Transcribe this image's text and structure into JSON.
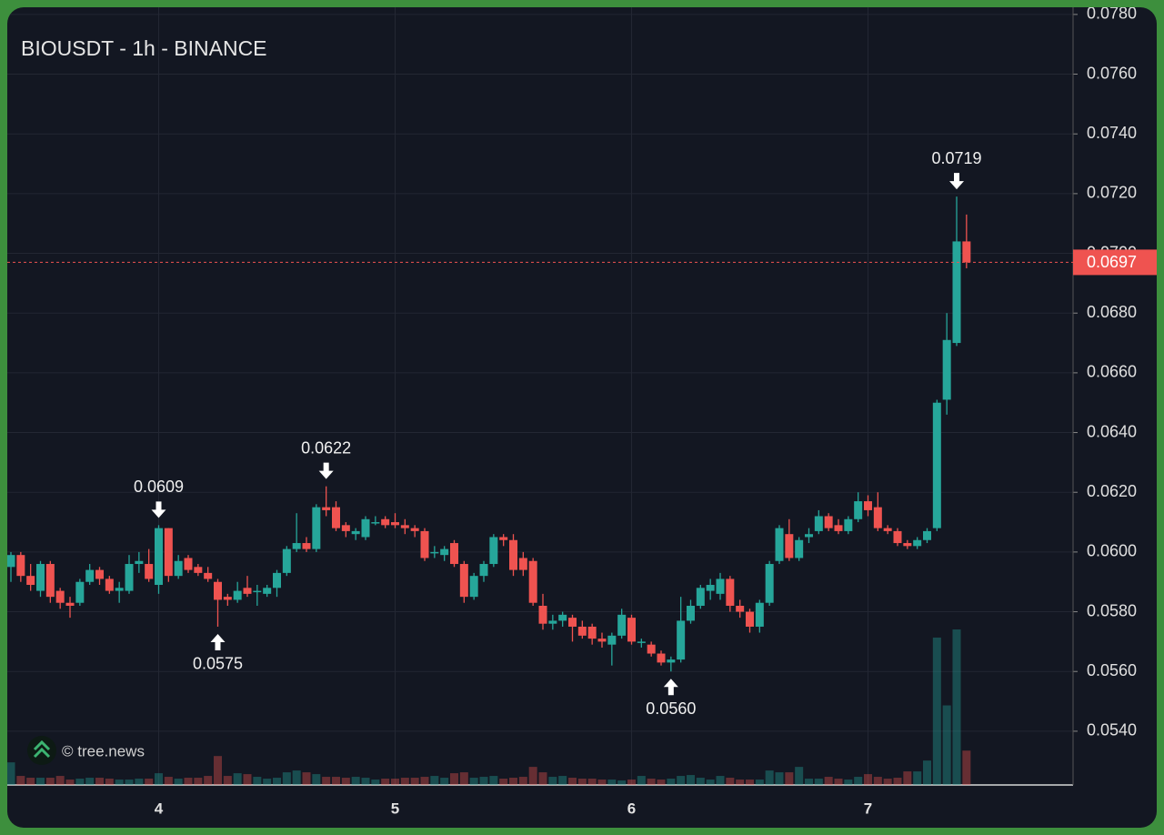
{
  "chart_data": {
    "type": "candlestick",
    "title": "BIOUSDT - 1h - BINANCE",
    "watermark": "© tree.news",
    "categories": [
      null,
      null,
      null,
      null,
      null,
      null,
      null,
      null,
      null,
      null,
      null,
      null,
      null,
      null,
      null,
      "4",
      null,
      null,
      null,
      null,
      null,
      null,
      null,
      null,
      null,
      null,
      null,
      null,
      null,
      null,
      null,
      null,
      null,
      null,
      null,
      null,
      null,
      null,
      null,
      "5",
      null,
      null,
      null,
      null,
      null,
      null,
      null,
      null,
      null,
      null,
      null,
      null,
      null,
      null,
      null,
      null,
      null,
      null,
      null,
      null,
      null,
      null,
      null,
      "6",
      null,
      null,
      null,
      null,
      null,
      null,
      null,
      null,
      null,
      null,
      null,
      null,
      null,
      null,
      null,
      null,
      null,
      null,
      null,
      null,
      null,
      null,
      null,
      "7",
      null,
      null,
      null,
      null,
      null,
      null,
      null,
      null,
      null,
      null
    ],
    "candles": [
      [
        0.0595,
        0.06,
        0.059,
        0.0599
      ],
      [
        0.0599,
        0.06,
        0.059,
        0.0592
      ],
      [
        0.0592,
        0.0596,
        0.0587,
        0.0589
      ],
      [
        0.0587,
        0.0597,
        0.0585,
        0.0596
      ],
      [
        0.0596,
        0.0597,
        0.0583,
        0.0585
      ],
      [
        0.0587,
        0.0588,
        0.0581,
        0.0583
      ],
      [
        0.0583,
        0.0585,
        0.0578,
        0.0582
      ],
      [
        0.0583,
        0.0591,
        0.0582,
        0.059
      ],
      [
        0.059,
        0.0596,
        0.0589,
        0.0594
      ],
      [
        0.0594,
        0.0595,
        0.0589,
        0.0591
      ],
      [
        0.0591,
        0.0592,
        0.0586,
        0.0587
      ],
      [
        0.0587,
        0.059,
        0.0583,
        0.0588
      ],
      [
        0.0587,
        0.0599,
        0.0586,
        0.0596
      ],
      [
        0.0596,
        0.06,
        0.0593,
        0.0597
      ],
      [
        0.0596,
        0.0601,
        0.059,
        0.0591
      ],
      [
        0.0589,
        0.0609,
        0.0586,
        0.0608
      ],
      [
        0.0608,
        0.0608,
        0.059,
        0.0592
      ],
      [
        0.0592,
        0.0599,
        0.0591,
        0.0597
      ],
      [
        0.0598,
        0.0599,
        0.0593,
        0.0594
      ],
      [
        0.0595,
        0.0596,
        0.0592,
        0.0593
      ],
      [
        0.0593,
        0.0595,
        0.059,
        0.0591
      ],
      [
        0.059,
        0.0591,
        0.0575,
        0.0584
      ],
      [
        0.0585,
        0.0586,
        0.0582,
        0.0584
      ],
      [
        0.0584,
        0.059,
        0.0583,
        0.0587
      ],
      [
        0.0588,
        0.0592,
        0.0585,
        0.0586
      ],
      [
        0.0587,
        0.0589,
        0.0582,
        0.0587
      ],
      [
        0.0586,
        0.0589,
        0.0585,
        0.0588
      ],
      [
        0.0588,
        0.0594,
        0.0585,
        0.0593
      ],
      [
        0.0593,
        0.0602,
        0.0592,
        0.0601
      ],
      [
        0.0601,
        0.0613,
        0.06,
        0.0603
      ],
      [
        0.0603,
        0.0605,
        0.06,
        0.0601
      ],
      [
        0.0601,
        0.0616,
        0.06,
        0.0615
      ],
      [
        0.0615,
        0.0622,
        0.0612,
        0.0614
      ],
      [
        0.0615,
        0.0617,
        0.0607,
        0.0608
      ],
      [
        0.0609,
        0.061,
        0.0605,
        0.0607
      ],
      [
        0.0606,
        0.0608,
        0.0604,
        0.0607
      ],
      [
        0.0605,
        0.0612,
        0.0604,
        0.0611
      ],
      [
        0.061,
        0.0612,
        0.0609,
        0.061
      ],
      [
        0.0611,
        0.0612,
        0.0608,
        0.0609
      ],
      [
        0.061,
        0.0613,
        0.0608,
        0.0609
      ],
      [
        0.0609,
        0.0611,
        0.0606,
        0.0608
      ],
      [
        0.0608,
        0.0609,
        0.0605,
        0.0607
      ],
      [
        0.0607,
        0.0608,
        0.0597,
        0.0598
      ],
      [
        0.06,
        0.0602,
        0.0598,
        0.06
      ],
      [
        0.0599,
        0.0602,
        0.0597,
        0.0601
      ],
      [
        0.0603,
        0.0604,
        0.0595,
        0.0596
      ],
      [
        0.0596,
        0.0597,
        0.0583,
        0.0585
      ],
      [
        0.0585,
        0.0593,
        0.0584,
        0.0592
      ],
      [
        0.0592,
        0.0597,
        0.059,
        0.0596
      ],
      [
        0.0596,
        0.0606,
        0.0595,
        0.0605
      ],
      [
        0.0605,
        0.0606,
        0.0602,
        0.0604
      ],
      [
        0.0604,
        0.0606,
        0.0592,
        0.0594
      ],
      [
        0.0598,
        0.06,
        0.0592,
        0.0594
      ],
      [
        0.0597,
        0.0598,
        0.0582,
        0.0583
      ],
      [
        0.0582,
        0.0586,
        0.0574,
        0.0576
      ],
      [
        0.0576,
        0.0579,
        0.0574,
        0.0577
      ],
      [
        0.0577,
        0.058,
        0.0575,
        0.0579
      ],
      [
        0.0578,
        0.0579,
        0.057,
        0.0575
      ],
      [
        0.0575,
        0.0577,
        0.0571,
        0.0572
      ],
      [
        0.0575,
        0.0576,
        0.0569,
        0.0571
      ],
      [
        0.0571,
        0.0573,
        0.0568,
        0.057
      ],
      [
        0.0569,
        0.0573,
        0.0562,
        0.0572
      ],
      [
        0.0572,
        0.0581,
        0.0571,
        0.0579
      ],
      [
        0.0578,
        0.0579,
        0.0569,
        0.057
      ],
      [
        0.057,
        0.0571,
        0.0568,
        0.057
      ],
      [
        0.0569,
        0.057,
        0.0565,
        0.0566
      ],
      [
        0.0566,
        0.0567,
        0.0562,
        0.0563
      ],
      [
        0.0563,
        0.0565,
        0.056,
        0.0564
      ],
      [
        0.0564,
        0.0585,
        0.0563,
        0.0577
      ],
      [
        0.0577,
        0.0584,
        0.0576,
        0.0582
      ],
      [
        0.0582,
        0.0589,
        0.0581,
        0.0588
      ],
      [
        0.0587,
        0.0591,
        0.0584,
        0.0589
      ],
      [
        0.0586,
        0.0593,
        0.0584,
        0.0591
      ],
      [
        0.0591,
        0.0592,
        0.058,
        0.0582
      ],
      [
        0.0582,
        0.0584,
        0.0578,
        0.058
      ],
      [
        0.058,
        0.0581,
        0.0573,
        0.0575
      ],
      [
        0.0575,
        0.0584,
        0.0573,
        0.0583
      ],
      [
        0.0583,
        0.0597,
        0.0582,
        0.0596
      ],
      [
        0.0597,
        0.0609,
        0.0596,
        0.0608
      ],
      [
        0.0606,
        0.0611,
        0.0597,
        0.0598
      ],
      [
        0.0598,
        0.0605,
        0.0597,
        0.0604
      ],
      [
        0.0605,
        0.0608,
        0.0603,
        0.0606
      ],
      [
        0.0607,
        0.0614,
        0.0606,
        0.0612
      ],
      [
        0.0612,
        0.0613,
        0.0607,
        0.0608
      ],
      [
        0.0609,
        0.0611,
        0.0606,
        0.0607
      ],
      [
        0.0607,
        0.0612,
        0.0606,
        0.0611
      ],
      [
        0.0611,
        0.062,
        0.061,
        0.0617
      ],
      [
        0.0617,
        0.0619,
        0.0612,
        0.0614
      ],
      [
        0.0615,
        0.062,
        0.0607,
        0.0608
      ],
      [
        0.0608,
        0.0609,
        0.0606,
        0.0607
      ],
      [
        0.0607,
        0.0608,
        0.0602,
        0.0603
      ],
      [
        0.0603,
        0.0604,
        0.0601,
        0.0602
      ],
      [
        0.0602,
        0.0605,
        0.0601,
        0.0604
      ],
      [
        0.0604,
        0.0608,
        0.0603,
        0.0607
      ],
      [
        0.0608,
        0.0651,
        0.0607,
        0.065
      ],
      [
        0.0651,
        0.068,
        0.0646,
        0.0671
      ],
      [
        0.067,
        0.0719,
        0.0669,
        0.0704
      ],
      [
        0.0704,
        0.0713,
        0.0695,
        0.0697
      ]
    ],
    "volume": [
      25,
      10,
      8,
      8,
      8,
      10,
      6,
      7,
      8,
      8,
      7,
      6,
      6,
      7,
      7,
      13,
      9,
      7,
      8,
      8,
      10,
      32,
      10,
      13,
      12,
      9,
      7,
      8,
      14,
      16,
      14,
      12,
      9,
      9,
      8,
      9,
      8,
      6,
      7,
      7,
      8,
      8,
      9,
      10,
      8,
      13,
      14,
      8,
      9,
      10,
      7,
      8,
      9,
      20,
      14,
      9,
      10,
      8,
      7,
      7,
      6,
      6,
      5,
      6,
      10,
      7,
      6,
      7,
      10,
      11,
      8,
      6,
      10,
      8,
      6,
      6,
      6,
      16,
      14,
      14,
      20,
      7,
      7,
      9,
      7,
      6,
      9,
      12,
      9,
      7,
      8,
      15,
      15,
      27,
      163,
      88,
      172,
      38
    ],
    "up_color": "#26a69a",
    "down_color": "#ef5350",
    "ylim": [
      0.0522,
      0.07824
    ],
    "yticks": [
      {
        "value": 0.078,
        "label": "0.0780"
      },
      {
        "value": 0.076,
        "label": "0.0760"
      },
      {
        "value": 0.074,
        "label": "0.0740"
      },
      {
        "value": 0.072,
        "label": "0.0720"
      },
      {
        "value": 0.07,
        "label": "0.0700"
      },
      {
        "value": 0.068,
        "label": "0.0680"
      },
      {
        "value": 0.066,
        "label": "0.0660"
      },
      {
        "value": 0.064,
        "label": "0.0640"
      },
      {
        "value": 0.062,
        "label": "0.0620"
      },
      {
        "value": 0.06,
        "label": "0.0600"
      },
      {
        "value": 0.058,
        "label": "0.0580"
      },
      {
        "value": 0.056,
        "label": "0.0560"
      },
      {
        "value": 0.054,
        "label": "0.0540"
      }
    ],
    "grid": true,
    "last_price": {
      "value": 0.0697,
      "label": "0.0697"
    },
    "annotations": [
      {
        "value": 0.0609,
        "label": "0.0609",
        "position": "above"
      },
      {
        "value": 0.0575,
        "label": "0.0575",
        "position": "below"
      },
      {
        "value": 0.0622,
        "label": "0.0622",
        "position": "above"
      },
      {
        "value": 0.056,
        "label": "0.0560",
        "position": "below"
      },
      {
        "value": 0.0719,
        "label": "0.0719",
        "position": "above"
      }
    ]
  }
}
